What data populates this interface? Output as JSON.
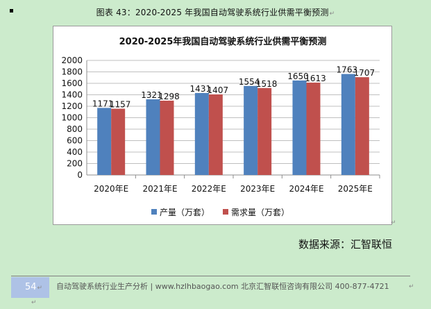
{
  "document": {
    "title": "图表 43：2020-2025 年我国自动驾驶系统行业供需平衡预测",
    "source": "数据来源：汇智联恒",
    "return_mark": "↵",
    "footer": {
      "page_number": "54",
      "text": "自动驾驶系统行业生产分析 | www.hzlhbaogao.com 北京汇智联恒咨询有限公司  400-877-4721"
    }
  },
  "colors": {
    "production": "#4f81bd",
    "demand": "#c0504d",
    "background": "#ccebcc"
  },
  "chart_data": {
    "type": "bar",
    "title": "2020-2025年我国自动驾驶系统行业供需平衡预测",
    "categories": [
      "2020年E",
      "2021年E",
      "2022年E",
      "2023年E",
      "2024年E",
      "2025年E"
    ],
    "series": [
      {
        "name": "产量（万套）",
        "values": [
          1171,
          1321,
          1431,
          1554,
          1650,
          1763
        ],
        "labels": [
          "1171",
          "1321",
          "1431",
          "1554",
          "1650",
          "1763"
        ]
      },
      {
        "name": "需求量（万套）",
        "values": [
          1157,
          1298,
          1407,
          1518,
          1613,
          1707
        ],
        "labels": [
          "1157",
          "1298",
          "1407",
          "1518",
          "1613",
          "1707"
        ]
      }
    ],
    "ylim": [
      0,
      2000
    ],
    "yticks": [
      "0",
      "200",
      "400",
      "600",
      "800",
      "1000",
      "1200",
      "1400",
      "1600",
      "1800",
      "2000"
    ],
    "grid": true,
    "legend": "bottom"
  }
}
